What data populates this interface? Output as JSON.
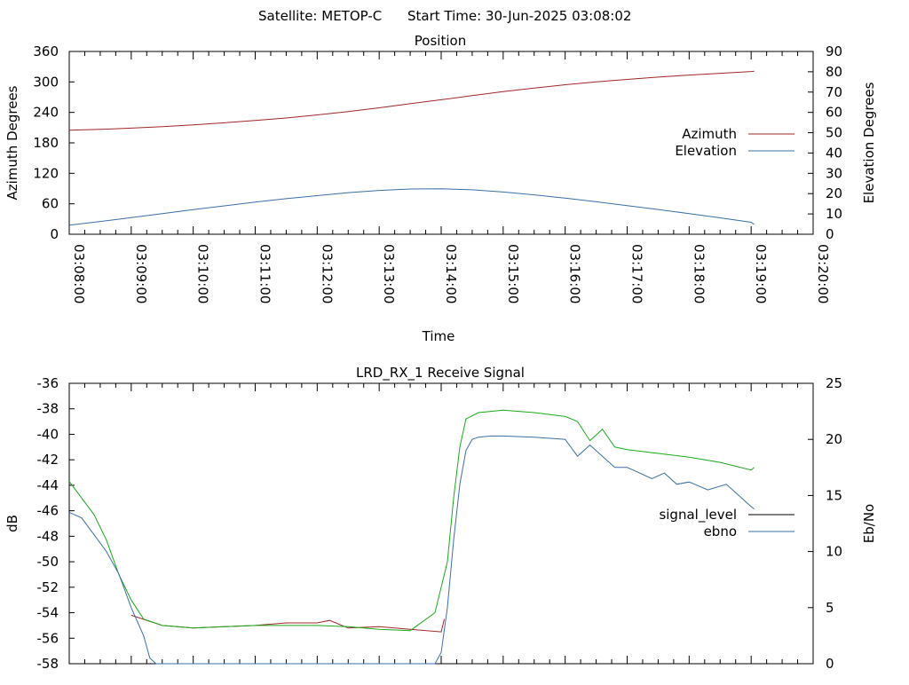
{
  "header": {
    "satellite": "Satellite: METOP-C",
    "start_time": "Start Time: 30-Jun-2025 03:08:02"
  },
  "chart_data": [
    {
      "type": "line",
      "title": "Position",
      "xlabel": "Time",
      "ylabel": "Azimuth Degrees",
      "y2label": "Elevation Degrees",
      "xticks": [
        "03:08:00",
        "03:09:00",
        "03:10:00",
        "03:11:00",
        "03:12:00",
        "03:13:00",
        "03:14:00",
        "03:15:00",
        "03:16:00",
        "03:17:00",
        "03:18:00",
        "03:19:00",
        "03:20:00"
      ],
      "xlim_minutes": [
        0,
        12
      ],
      "ylim": [
        0,
        360
      ],
      "yticks": [
        0,
        60,
        120,
        180,
        240,
        300,
        360
      ],
      "y2lim": [
        0,
        90
      ],
      "y2ticks": [
        0,
        10,
        20,
        30,
        40,
        50,
        60,
        70,
        80,
        90
      ],
      "legend_position": "right",
      "series": [
        {
          "name": "Azimuth",
          "axis": "y",
          "color": "#a0272a",
          "x_minutes": [
            0,
            0.5,
            1,
            1.5,
            2,
            2.5,
            3,
            3.5,
            4,
            4.5,
            5,
            5.5,
            6,
            6.5,
            7,
            7.5,
            8,
            8.5,
            9,
            9.5,
            10,
            10.5,
            11,
            11.05
          ],
          "values": [
            205,
            206.5,
            209,
            212,
            215.5,
            219.5,
            224,
            229,
            235,
            241.5,
            249,
            257,
            265,
            273,
            281,
            288,
            294.5,
            300,
            305,
            309.5,
            313.5,
            317,
            320.5,
            321
          ]
        },
        {
          "name": "Elevation",
          "axis": "y2",
          "color": "#3a6fa8",
          "x_minutes": [
            0,
            0.5,
            1,
            1.5,
            2,
            2.5,
            3,
            3.5,
            4,
            4.5,
            5,
            5.5,
            6,
            6.5,
            7,
            7.5,
            8,
            8.5,
            9,
            9.5,
            10,
            10.5,
            11,
            11.05
          ],
          "values": [
            4.5,
            6.3,
            8.2,
            10.2,
            12.1,
            14,
            15.8,
            17.5,
            19,
            20.5,
            21.6,
            22.3,
            22.4,
            21.9,
            20.8,
            19.4,
            17.8,
            16,
            14.1,
            12.2,
            10.2,
            8.1,
            5.9,
            4.8
          ]
        }
      ]
    },
    {
      "type": "line",
      "title": "LRD_RX_1 Receive Signal",
      "ylabel": "dB",
      "y2label": "Eb/No",
      "xlim_minutes": [
        0,
        12
      ],
      "ylim": [
        -58,
        -36
      ],
      "yticks": [
        -58,
        -56,
        -54,
        -52,
        -50,
        -48,
        -46,
        -44,
        -42,
        -40,
        -38,
        -36
      ],
      "y2lim": [
        0,
        25
      ],
      "y2ticks": [
        0,
        5,
        10,
        15,
        20,
        25
      ],
      "legend_position": "right",
      "series": [
        {
          "name": "signal_level",
          "axis": "y",
          "color": "#a0272a",
          "x_minutes": [
            1,
            1.5,
            2,
            2.5,
            3,
            3.5,
            4,
            4.2,
            4.5,
            5,
            5.5,
            6,
            6.05
          ],
          "values": [
            -54.2,
            -55,
            -55.2,
            -55.1,
            -55,
            -54.8,
            -54.8,
            -54.6,
            -55.2,
            -55.1,
            -55.3,
            -55.5,
            -54.5
          ]
        },
        {
          "name": "",
          "axis": "y",
          "color": "#1aaa1a",
          "x_minutes": [
            0,
            0.2,
            0.4,
            0.6,
            0.8,
            1,
            1.2,
            1.5,
            2,
            2.5,
            3,
            3.5,
            4,
            4.5,
            5,
            5.5,
            5.9,
            6.1,
            6.2,
            6.3,
            6.4,
            6.6,
            6.8,
            7,
            7.5,
            8,
            8.2,
            8.4,
            8.6,
            8.8,
            9,
            9.5,
            10,
            10.5,
            11,
            11.05
          ],
          "values": [
            -43.7,
            -45,
            -46.3,
            -48.3,
            -51,
            -53,
            -54.5,
            -55,
            -55.2,
            -55.1,
            -55,
            -55,
            -55,
            -55.1,
            -55.3,
            -55.4,
            -54,
            -50,
            -45,
            -41,
            -38.8,
            -38.3,
            -38.2,
            -38.1,
            -38.3,
            -38.6,
            -39,
            -40.5,
            -39.6,
            -41,
            -41.2,
            -41.5,
            -41.8,
            -42.2,
            -42.8,
            -42.6
          ]
        },
        {
          "name": "ebno",
          "axis": "y2",
          "color": "#3a6fa8",
          "x_minutes": [
            0,
            0.2,
            0.4,
            0.6,
            0.8,
            1,
            1.2,
            1.3,
            1.4,
            1.6,
            5.9,
            6.0,
            6.1,
            6.2,
            6.3,
            6.4,
            6.5,
            6.6,
            6.8,
            7,
            7.5,
            8,
            8.2,
            8.4,
            8.6,
            8.8,
            9,
            9.2,
            9.4,
            9.6,
            9.8,
            10,
            10.3,
            10.6,
            11,
            11.05
          ],
          "values": [
            13.5,
            13,
            11.5,
            10,
            8,
            5,
            2.5,
            0.5,
            0,
            0,
            0,
            1,
            5,
            11,
            16,
            19,
            20,
            20.2,
            20.3,
            20.3,
            20.2,
            20,
            18.5,
            19.5,
            18.5,
            17.5,
            17.5,
            17,
            16.5,
            17,
            16,
            16.2,
            15.5,
            16,
            14,
            13.8
          ]
        }
      ]
    }
  ]
}
